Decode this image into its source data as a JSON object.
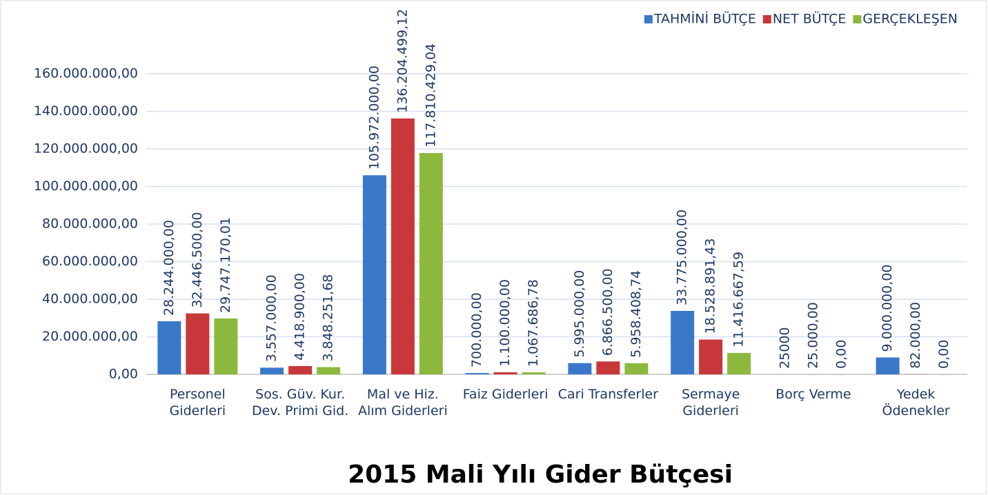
{
  "chart_data": {
    "type": "bar",
    "title": "2015 Mali Yılı Gider Bütçesi",
    "categories": [
      "Personel Giderleri",
      "Sos. Güv. Kur. Dev. Primi Gid.",
      "Mal ve Hiz. Alım Giderleri",
      "Faiz Giderleri",
      "Cari Transferler",
      "Sermaye Giderleri",
      "Borç Verme",
      "Yedek Ödenekler"
    ],
    "series": [
      {
        "name": "TAHMİNİ BÜTÇE",
        "color": "#3a78c9",
        "values": [
          28244000,
          3557000,
          105972000,
          700000,
          5995000,
          33775000,
          25000,
          9000000
        ],
        "value_labels": [
          "28.244.000,00",
          "3.557.000,00",
          "105.972.000,00",
          "700.000,00",
          "5.995.000,00",
          "33.775.000,00",
          "25000",
          "9.000.000,00"
        ]
      },
      {
        "name": "NET BÜTÇE",
        "color": "#c8373a",
        "values": [
          32446500,
          4418900,
          136204499.12,
          1100000,
          6866500,
          18528891.43,
          25000,
          82000
        ],
        "value_labels": [
          "32.446.500,00",
          "4.418.900,00",
          "136.204.499,12",
          "1.100.000,00",
          "6.866.500,00",
          "18.528.891,43",
          "25.000,00",
          "82.000,00"
        ]
      },
      {
        "name": "GERÇEKLEŞEN",
        "color": "#8cb93d",
        "values": [
          29747170.01,
          3848251.68,
          117810429.04,
          1067686.78,
          5958408.74,
          11416667.59,
          0,
          0
        ],
        "value_labels": [
          "29.747.170,01",
          "3.848.251,68",
          "117.810.429,04",
          "1.067.686,78",
          "5.958.408,74",
          "11.416.667,59",
          "0,00",
          "0,00"
        ]
      }
    ],
    "ylim": [
      0,
      160000000
    ],
    "yticks": [
      {
        "value": 0,
        "label": "0,00"
      },
      {
        "value": 20000000,
        "label": "20.000.000,00"
      },
      {
        "value": 40000000,
        "label": "40.000.000,00"
      },
      {
        "value": 60000000,
        "label": "60.000.000,00"
      },
      {
        "value": 80000000,
        "label": "80.000.000,00"
      },
      {
        "value": 100000000,
        "label": "100.000.000,00"
      },
      {
        "value": 120000000,
        "label": "120.000.000,00"
      },
      {
        "value": 140000000,
        "label": "140.000.000,00"
      },
      {
        "value": 160000000,
        "label": "160.000.000,00"
      }
    ],
    "grid": true,
    "legend": "top-right"
  }
}
